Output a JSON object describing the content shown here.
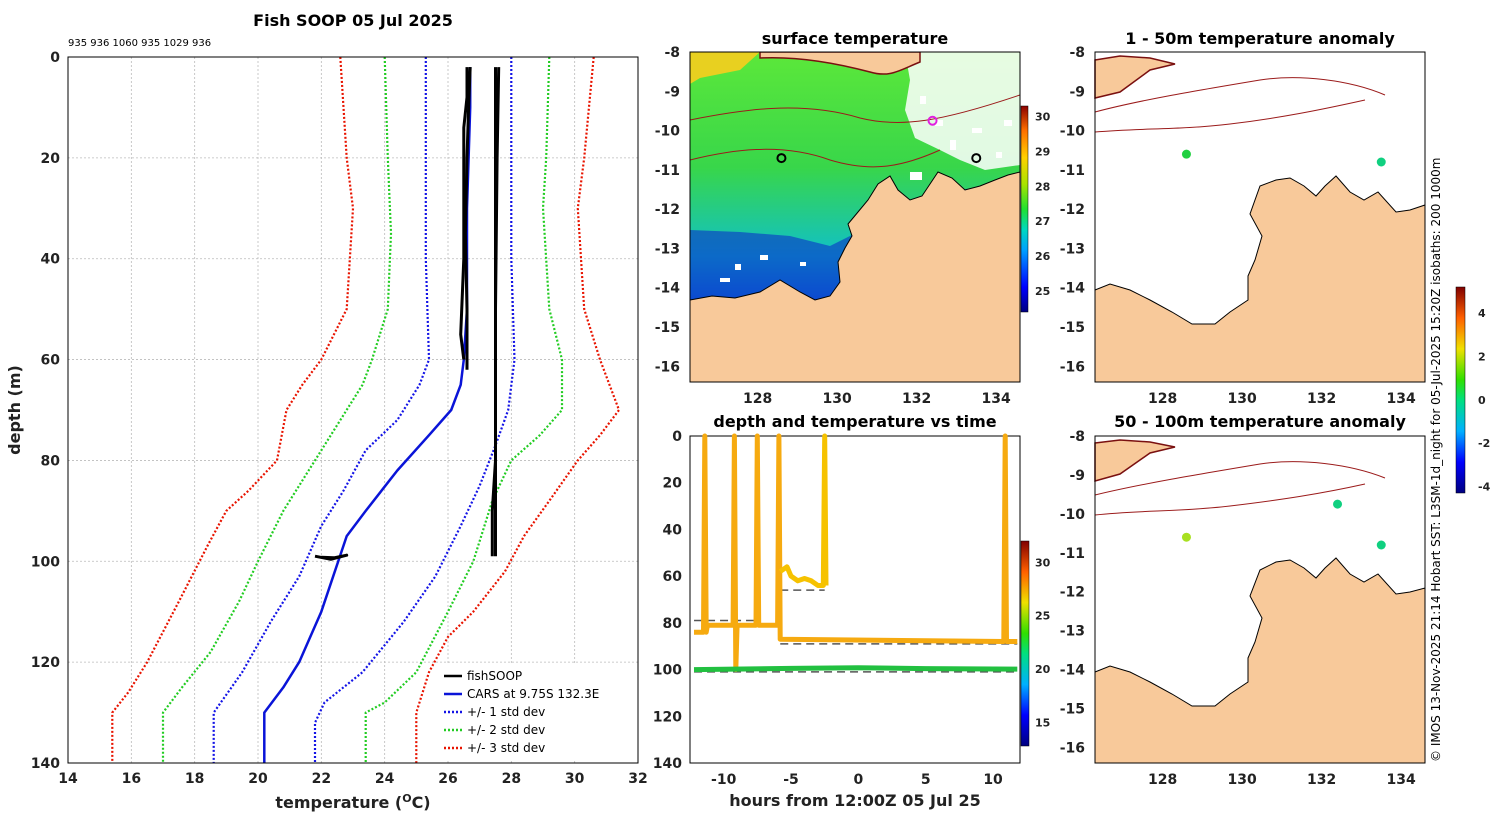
{
  "colors": {
    "fishsoop": "#000000",
    "cars": "#0a14d8",
    "sd1": "#1414e6",
    "sd2": "#22cc22",
    "sd3": "#e81400",
    "land": "#f8c99a",
    "ocean": "#ffffff",
    "isobath": "#9b1b1b",
    "grid": "#bbbbbb"
  },
  "chart_data": [
    {
      "id": "profile",
      "type": "line",
      "title": "Fish SOOP 05 Jul 2025",
      "subtitle": "935 936 1060 935 1029 936",
      "xlabel": "temperature (",
      "xlabel_sup": "O",
      "xlabel_unit": "C)",
      "ylabel": "depth (m)",
      "xlim": [
        14,
        32
      ],
      "ylim": [
        0,
        140
      ],
      "xticks": [
        14,
        16,
        18,
        20,
        22,
        24,
        26,
        28,
        30,
        32
      ],
      "yticks": [
        0,
        20,
        40,
        60,
        80,
        100,
        120,
        140
      ],
      "grid": true,
      "legend_position": "bottom-right",
      "legend": [
        "fishSOOP",
        "CARS at 9.75S 132.3E",
        "+/- 1 std dev",
        "+/- 2 std dev",
        "+/- 3 std dev"
      ],
      "series": [
        {
          "name": "CARS at 9.75S 132.3E",
          "style": "solid",
          "color": "cars",
          "points": [
            [
              26.7,
              2
            ],
            [
              26.7,
              10
            ],
            [
              26.6,
              30
            ],
            [
              26.6,
              50
            ],
            [
              26.5,
              60
            ],
            [
              26.4,
              65
            ],
            [
              26.1,
              70
            ],
            [
              25.4,
              75
            ],
            [
              24.4,
              82
            ],
            [
              23.4,
              90
            ],
            [
              22.8,
              95
            ],
            [
              22.0,
              110
            ],
            [
              21.3,
              120
            ],
            [
              20.8,
              125
            ],
            [
              20.2,
              130
            ],
            [
              20.2,
              140
            ]
          ]
        },
        {
          "name": "+/- 1 std dev",
          "style": "dotted",
          "color": "sd1",
          "points": [
            [
              25.3,
              0
            ],
            [
              25.3,
              20
            ],
            [
              25.3,
              40
            ],
            [
              25.4,
              60
            ],
            [
              25.1,
              65
            ],
            [
              24.4,
              72
            ],
            [
              23.4,
              78
            ],
            [
              22.7,
              86
            ],
            [
              22.0,
              93
            ],
            [
              21.3,
              103
            ],
            [
              20.4,
              112
            ],
            [
              19.5,
              122
            ],
            [
              18.6,
              130
            ],
            [
              18.6,
              140
            ]
          ]
        },
        {
          "name": "+/- 1 std dev",
          "style": "dotted",
          "color": "sd1",
          "points": [
            [
              28.0,
              0
            ],
            [
              28.0,
              20
            ],
            [
              28.0,
              40
            ],
            [
              28.1,
              60
            ],
            [
              27.9,
              70
            ],
            [
              27.5,
              77
            ],
            [
              27.0,
              85
            ],
            [
              26.4,
              93
            ],
            [
              25.6,
              103
            ],
            [
              24.6,
              112
            ],
            [
              23.3,
              122
            ],
            [
              22.1,
              128
            ],
            [
              21.8,
              132
            ],
            [
              21.8,
              140
            ]
          ]
        },
        {
          "name": "+/- 2 std dev",
          "style": "dotted",
          "color": "sd2",
          "points": [
            [
              24.0,
              0
            ],
            [
              24.1,
              20
            ],
            [
              24.2,
              35
            ],
            [
              24.1,
              50
            ],
            [
              23.6,
              60
            ],
            [
              23.3,
              65
            ],
            [
              22.6,
              72
            ],
            [
              21.8,
              80
            ],
            [
              20.8,
              90
            ],
            [
              20.0,
              100
            ],
            [
              19.4,
              108
            ],
            [
              18.5,
              118
            ],
            [
              17.6,
              125
            ],
            [
              17.0,
              130
            ],
            [
              17.0,
              140
            ]
          ]
        },
        {
          "name": "+/- 2 std dev",
          "style": "dotted",
          "color": "sd2",
          "points": [
            [
              29.2,
              0
            ],
            [
              29.1,
              20
            ],
            [
              29.0,
              30
            ],
            [
              29.2,
              50
            ],
            [
              29.6,
              60
            ],
            [
              29.6,
              70
            ],
            [
              28.9,
              75
            ],
            [
              28.0,
              80
            ],
            [
              27.4,
              88
            ],
            [
              26.8,
              100
            ],
            [
              26.0,
              110
            ],
            [
              25.0,
              122
            ],
            [
              24.0,
              128
            ],
            [
              23.4,
              130
            ],
            [
              23.4,
              140
            ]
          ]
        },
        {
          "name": "+/- 3 std dev",
          "style": "dotted",
          "color": "sd3",
          "points": [
            [
              22.6,
              0
            ],
            [
              22.8,
              20
            ],
            [
              23.0,
              30
            ],
            [
              22.8,
              50
            ],
            [
              22.0,
              60
            ],
            [
              21.4,
              65
            ],
            [
              20.9,
              70
            ],
            [
              20.6,
              80
            ],
            [
              19.7,
              86
            ],
            [
              19.0,
              90
            ],
            [
              18.4,
              97
            ],
            [
              17.5,
              108
            ],
            [
              16.5,
              120
            ],
            [
              15.9,
              126
            ],
            [
              15.4,
              130
            ],
            [
              15.4,
              140
            ]
          ]
        },
        {
          "name": "+/- 3 std dev",
          "style": "dotted",
          "color": "sd3",
          "points": [
            [
              30.6,
              0
            ],
            [
              30.3,
              20
            ],
            [
              30.1,
              30
            ],
            [
              30.3,
              50
            ],
            [
              30.8,
              60
            ],
            [
              31.4,
              70
            ],
            [
              30.8,
              75
            ],
            [
              30.1,
              80
            ],
            [
              29.2,
              88
            ],
            [
              28.4,
              95
            ],
            [
              27.8,
              102
            ],
            [
              26.8,
              110
            ],
            [
              26.0,
              115
            ],
            [
              25.4,
              122
            ],
            [
              25.0,
              130
            ],
            [
              25.0,
              140
            ]
          ]
        },
        {
          "name": "fishSOOP",
          "style": "solid",
          "color": "fishsoop",
          "width": 3,
          "points": [
            [
              26.6,
              2
            ],
            [
              26.6,
              8
            ],
            [
              26.5,
              14
            ],
            [
              26.5,
              25
            ],
            [
              26.5,
              40
            ],
            [
              26.4,
              55
            ],
            [
              26.5,
              60
            ]
          ]
        },
        {
          "name": "fishSOOP",
          "style": "solid",
          "color": "fishsoop",
          "width": 3,
          "points": [
            [
              26.7,
              2
            ],
            [
              26.65,
              10
            ],
            [
              26.6,
              20
            ],
            [
              26.55,
              35
            ],
            [
              26.6,
              50
            ],
            [
              26.6,
              62
            ]
          ]
        },
        {
          "name": "fishSOOP",
          "style": "solid",
          "color": "fishsoop",
          "width": 3,
          "points": [
            [
              27.5,
              2
            ],
            [
              27.5,
              20
            ],
            [
              27.5,
              40
            ],
            [
              27.5,
              60
            ],
            [
              27.5,
              80
            ],
            [
              27.4,
              90
            ],
            [
              27.4,
              99
            ]
          ]
        },
        {
          "name": "fishSOOP",
          "style": "solid",
          "color": "fishsoop",
          "width": 3,
          "points": [
            [
              27.6,
              2
            ],
            [
              27.55,
              20
            ],
            [
              27.5,
              50
            ],
            [
              27.5,
              80
            ],
            [
              27.5,
              99
            ]
          ]
        },
        {
          "name": "fishSOOP",
          "style": "solid",
          "color": "fishsoop",
          "width": 3,
          "points": [
            [
              21.8,
              99
            ],
            [
              22.3,
              99.6
            ],
            [
              22.8,
              98.8
            ],
            [
              22.4,
              99.3
            ],
            [
              22.0,
              99.2
            ]
          ]
        }
      ]
    },
    {
      "id": "sst_map",
      "type": "heatmap",
      "title": "surface temperature",
      "xlim": [
        126.3,
        134.6
      ],
      "ylim": [
        -16.4,
        -8
      ],
      "xticks": [
        128,
        130,
        132,
        134
      ],
      "yticks": [
        -8,
        -9,
        -10,
        -11,
        -12,
        -13,
        -14,
        -15,
        -16
      ],
      "colorbar": {
        "min": 24.4,
        "max": 30.3,
        "ticks": [
          25,
          26,
          27,
          28,
          29,
          30
        ]
      },
      "markers": [
        {
          "lon": 128.6,
          "lat": -10.7,
          "color": "#000000"
        },
        {
          "lon": 132.4,
          "lat": -9.75,
          "color": "#e020e0"
        },
        {
          "lon": 133.5,
          "lat": -10.7,
          "color": "#000000"
        }
      ]
    },
    {
      "id": "depth_time",
      "type": "scatter",
      "title": "depth and temperature vs time",
      "xlabel": "hours from 12:00Z 05 Jul 25",
      "xlim": [
        -12.5,
        12
      ],
      "ylim": [
        0,
        140
      ],
      "xticks": [
        -10,
        -5,
        0,
        5,
        10
      ],
      "yticks": [
        0,
        20,
        40,
        60,
        80,
        100,
        120,
        140
      ],
      "colorbar": {
        "min": 12.8,
        "max": 32,
        "ticks": [
          15,
          20,
          25,
          30
        ]
      },
      "traces": [
        {
          "color": "#f6aa10",
          "points": [
            [
              -12.2,
              84
            ],
            [
              -11.5,
              84
            ],
            [
              -11.4,
              0
            ],
            [
              -11.3,
              84
            ],
            [
              -11.2,
              81
            ],
            [
              -9.3,
              81
            ],
            [
              -9.2,
              0
            ],
            [
              -9.1,
              100
            ],
            [
              -9.0,
              81
            ],
            [
              -7.6,
              81
            ],
            [
              -7.5,
              0
            ],
            [
              -7.4,
              81
            ],
            [
              -6.0,
              81
            ],
            [
              -5.9,
              0
            ],
            [
              -5.8,
              87
            ],
            [
              10.8,
              88
            ],
            [
              10.9,
              0
            ],
            [
              11.0,
              88
            ],
            [
              11.8,
              88
            ]
          ]
        },
        {
          "color": "#f6c200",
          "points": [
            [
              -5.8,
              58
            ],
            [
              -5.3,
              56
            ],
            [
              -5.0,
              60
            ],
            [
              -4.5,
              62
            ],
            [
              -4.0,
              61
            ],
            [
              -3.5,
              62
            ],
            [
              -3.0,
              64
            ],
            [
              -2.6,
              64
            ],
            [
              -2.5,
              0
            ],
            [
              -2.4,
              64
            ]
          ]
        },
        {
          "color": "#22c040",
          "points": [
            [
              -12.2,
              100
            ],
            [
              -5,
              99.5
            ],
            [
              0,
              99.2
            ],
            [
              5,
              99.6
            ],
            [
              11.8,
              99.8
            ]
          ]
        }
      ],
      "dashed_lines": [
        [
          -12.2,
          79
        ],
        [
          -7.6,
          79
        ],
        [
          -5.8,
          66
        ],
        [
          -2.5,
          66
        ],
        [
          -5.8,
          89
        ],
        [
          11.8,
          89
        ],
        [
          -12.2,
          101
        ],
        [
          11.8,
          101
        ]
      ]
    },
    {
      "id": "anom_1_50",
      "type": "heatmap",
      "title": "1 - 50m temperature anomaly",
      "xlim": [
        126.3,
        134.6
      ],
      "ylim": [
        -16.4,
        -8
      ],
      "xticks": [
        128,
        130,
        132,
        134
      ],
      "yticks": [
        -8,
        -9,
        -10,
        -11,
        -12,
        -13,
        -14,
        -15,
        -16
      ],
      "points": [
        {
          "lon": 128.6,
          "lat": -10.6,
          "value": 0.0
        },
        {
          "lon": 133.5,
          "lat": -10.8,
          "value": 0.3
        }
      ]
    },
    {
      "id": "anom_50_100",
      "type": "heatmap",
      "title": "50 - 100m temperature anomaly",
      "xlim": [
        126.3,
        134.6
      ],
      "ylim": [
        -16.4,
        -8
      ],
      "xticks": [
        128,
        130,
        132,
        134
      ],
      "yticks": [
        -8,
        -9,
        -10,
        -11,
        -12,
        -13,
        -14,
        -15,
        -16
      ],
      "colorbar": {
        "min": -4.3,
        "max": 5.2,
        "ticks": [
          4,
          2,
          0,
          -2,
          -4
        ]
      },
      "points": [
        {
          "lon": 128.6,
          "lat": -10.6,
          "value": 1.2
        },
        {
          "lon": 132.4,
          "lat": -9.75,
          "value": 0.3
        },
        {
          "lon": 133.5,
          "lat": -10.8,
          "value": 0.3
        }
      ]
    }
  ],
  "side_note": "© IMOS 13-Nov-2025 21:14 Hobart SST: L3SM-1d_night for 05-Jul-2025 15:20Z isobaths: 200  1000m"
}
